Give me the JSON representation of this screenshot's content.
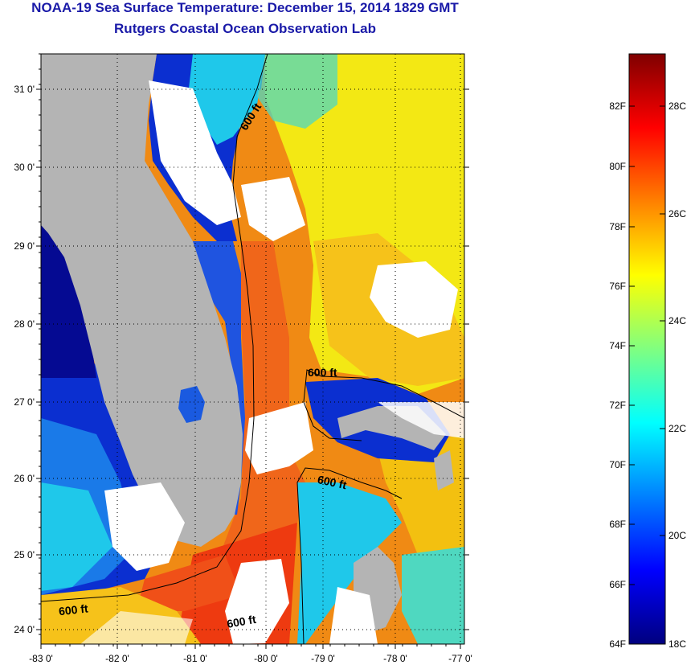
{
  "title": {
    "line1": "NOAA-19 Sea Surface Temperature:  December 15, 2014 1829 GMT",
    "line2": "Rutgers Coastal Ocean Observation Lab"
  },
  "map": {
    "lon_labels": [
      "-83 0'",
      "-82 0'",
      "-81 0'",
      "-80 0'",
      "-79 0'",
      "-78 0'",
      "-77 0'"
    ],
    "lat_labels": [
      "31 0'",
      "30 0'",
      "29 0'",
      "28 0'",
      "27 0'",
      "26 0'",
      "25 0'",
      "24 0'"
    ],
    "contour_label": "600 ft",
    "colors": {
      "land": "#b4b4b4",
      "cloud": "#ffffff",
      "warm_orange": "#f08a14",
      "hot_red": "#ee3a10",
      "yellow": "#f3e814",
      "gold": "#f6c21a",
      "cold_blue": "#0b2fd0",
      "deep_blue": "#050a92",
      "cyan": "#1fc8ea",
      "aqua": "#4fd8c0"
    }
  },
  "colorbar": {
    "fahrenheit_labels": [
      "82F",
      "80F",
      "78F",
      "76F",
      "74F",
      "72F",
      "70F",
      "68F",
      "66F",
      "64F"
    ],
    "celsius_labels": [
      "28C",
      "26C",
      "24C",
      "22C",
      "20C",
      "18C"
    ],
    "gradient": [
      "#00007f",
      "#0000ff",
      "#0080ff",
      "#00ffff",
      "#80ff80",
      "#ffff00",
      "#ff8000",
      "#ff0000",
      "#7f0000"
    ]
  }
}
